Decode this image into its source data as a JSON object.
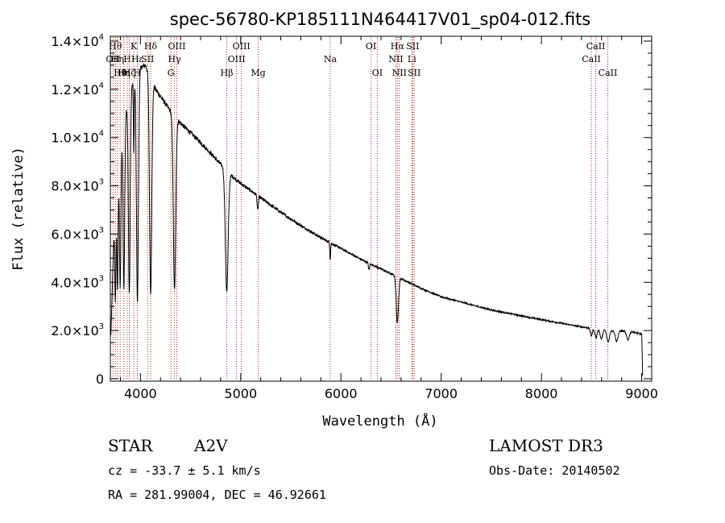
{
  "chart_data": {
    "type": "line",
    "title": "spec-56780-KP185111N464417V01_sp04-012.fits",
    "xlabel": "Wavelength (Å)",
    "ylabel": "Flux (relative)",
    "xlim": [
      3700,
      9100
    ],
    "ylim": [
      -100,
      14200
    ],
    "x_ticks": [
      {
        "value": 4000,
        "label": "4000"
      },
      {
        "value": 5000,
        "label": "5000"
      },
      {
        "value": 6000,
        "label": "6000"
      },
      {
        "value": 7000,
        "label": "7000"
      },
      {
        "value": 8000,
        "label": "8000"
      },
      {
        "value": 9000,
        "label": "9000"
      }
    ],
    "y_ticks": [
      {
        "value": 0,
        "mantissa": "0",
        "exp": ""
      },
      {
        "value": 2000,
        "mantissa": "2.0×10",
        "exp": "3"
      },
      {
        "value": 4000,
        "mantissa": "4.0×10",
        "exp": "3"
      },
      {
        "value": 6000,
        "mantissa": "6.0×10",
        "exp": "3"
      },
      {
        "value": 8000,
        "mantissa": "8.0×10",
        "exp": "3"
      },
      {
        "value": 10000,
        "mantissa": "1.0×10",
        "exp": "4"
      },
      {
        "value": 12000,
        "mantissa": "1.2×10",
        "exp": "4"
      },
      {
        "value": 14000,
        "mantissa": "1.4×10",
        "exp": "4"
      }
    ],
    "continuum": [
      [
        3705,
        1800
      ],
      [
        3740,
        6500
      ],
      [
        3800,
        9500
      ],
      [
        3850,
        11000
      ],
      [
        3900,
        12000
      ],
      [
        3950,
        12600
      ],
      [
        4000,
        12900
      ],
      [
        4050,
        13000
      ],
      [
        4100,
        12500
      ],
      [
        4150,
        12000
      ],
      [
        4200,
        11700
      ],
      [
        4250,
        11400
      ],
      [
        4300,
        11100
      ],
      [
        4400,
        10600
      ],
      [
        4500,
        10200
      ],
      [
        4600,
        9800
      ],
      [
        4700,
        9350
      ],
      [
        4800,
        8900
      ],
      [
        4900,
        8450
      ],
      [
        5000,
        8100
      ],
      [
        5200,
        7500
      ],
      [
        5400,
        6900
      ],
      [
        5600,
        6350
      ],
      [
        5800,
        5850
      ],
      [
        6000,
        5400
      ],
      [
        6200,
        4950
      ],
      [
        6400,
        4550
      ],
      [
        6600,
        4150
      ],
      [
        6800,
        3750
      ],
      [
        7000,
        3400
      ],
      [
        7500,
        2850
      ],
      [
        8000,
        2450
      ],
      [
        8400,
        2150
      ],
      [
        8700,
        2000
      ],
      [
        8900,
        1950
      ],
      [
        9000,
        1850
      ],
      [
        9010,
        100
      ]
    ],
    "absorption_features": [
      {
        "center": 3750,
        "depth": 0.55,
        "width": 6
      },
      {
        "center": 3771,
        "depth": 0.55,
        "width": 6
      },
      {
        "center": 3798,
        "depth": 0.6,
        "width": 7
      },
      {
        "center": 3835,
        "depth": 0.65,
        "width": 8
      },
      {
        "center": 3889,
        "depth": 0.7,
        "width": 9
      },
      {
        "center": 3934,
        "depth": 0.25,
        "width": 4
      },
      {
        "center": 3970,
        "depth": 0.75,
        "width": 10
      },
      {
        "center": 4102,
        "depth": 0.72,
        "width": 11
      },
      {
        "center": 4340,
        "depth": 0.66,
        "width": 12
      },
      {
        "center": 4861,
        "depth": 0.58,
        "width": 14
      },
      {
        "center": 5170,
        "depth": 0.08,
        "width": 6
      },
      {
        "center": 5893,
        "depth": 0.12,
        "width": 4
      },
      {
        "center": 6280,
        "depth": 0.06,
        "width": 5
      },
      {
        "center": 6563,
        "depth": 0.45,
        "width": 11
      },
      {
        "center": 8498,
        "depth": 0.15,
        "width": 10
      },
      {
        "center": 8545,
        "depth": 0.18,
        "width": 11
      },
      {
        "center": 8598,
        "depth": 0.2,
        "width": 12
      },
      {
        "center": 8665,
        "depth": 0.25,
        "width": 13
      },
      {
        "center": 8750,
        "depth": 0.22,
        "width": 13
      },
      {
        "center": 8863,
        "depth": 0.18,
        "width": 13
      }
    ],
    "spectral_lines": [
      {
        "wave": 3727,
        "label": "OII",
        "row": 2
      },
      {
        "wave": 3750,
        "label": "Hθ",
        "row": 1
      },
      {
        "wave": 3771,
        "label": "Hη",
        "row": 2
      },
      {
        "wave": 3798,
        "label": "Hθ",
        "row": 3
      },
      {
        "wave": 3835,
        "label": "Hη",
        "row": 3
      },
      {
        "wave": 3869,
        "label": "H",
        "row": 2
      },
      {
        "wave": 3889,
        "label": "Hζ",
        "row": 3
      },
      {
        "wave": 3934,
        "label": "K",
        "row": 1
      },
      {
        "wave": 3969,
        "label": "H",
        "row": 3
      },
      {
        "wave": 3970,
        "label": "Hε",
        "row": 2
      },
      {
        "wave": 4072,
        "label": "SII",
        "row": 2
      },
      {
        "wave": 4102,
        "label": "Hδ",
        "row": 1
      },
      {
        "wave": 4304,
        "label": "G",
        "row": 3
      },
      {
        "wave": 4340,
        "label": "Hγ",
        "row": 2
      },
      {
        "wave": 4363,
        "label": "OIII",
        "row": 1
      },
      {
        "wave": 4861,
        "label": "Hβ",
        "row": 3
      },
      {
        "wave": 4959,
        "label": "OIII",
        "row": 2
      },
      {
        "wave": 5007,
        "label": "OIII",
        "row": 1
      },
      {
        "wave": 5175,
        "label": "Mg",
        "row": 3
      },
      {
        "wave": 5893,
        "label": "Na",
        "row": 2
      },
      {
        "wave": 6300,
        "label": "OI",
        "row": 1
      },
      {
        "wave": 6363,
        "label": "OI",
        "row": 3
      },
      {
        "wave": 6548,
        "label": "NII",
        "row": 2
      },
      {
        "wave": 6563,
        "label": "Hα",
        "row": 1
      },
      {
        "wave": 6583,
        "label": "NII",
        "row": 3
      },
      {
        "wave": 6708,
        "label": "Li",
        "row": 2
      },
      {
        "wave": 6716,
        "label": "SII",
        "row": 1
      },
      {
        "wave": 6731,
        "label": "SII",
        "row": 3
      },
      {
        "wave": 8498,
        "label": "CaII",
        "row": 2
      },
      {
        "wave": 8542,
        "label": "CaII",
        "row": 1
      },
      {
        "wave": 8662,
        "label": "CaII",
        "row": 3
      }
    ],
    "colors": {
      "spectrum": "#000000",
      "line_marker": "#b22222",
      "axes": "#000000"
    }
  },
  "info": {
    "object_class": "STAR",
    "subclass": "A2V",
    "survey": "LAMOST DR3",
    "redshift_text": "cz = -33.7 ± 5.1 km/s",
    "obs_date": "Obs-Date: 20140502",
    "coordinates": "RA = 281.99004, DEC =  46.92661"
  }
}
